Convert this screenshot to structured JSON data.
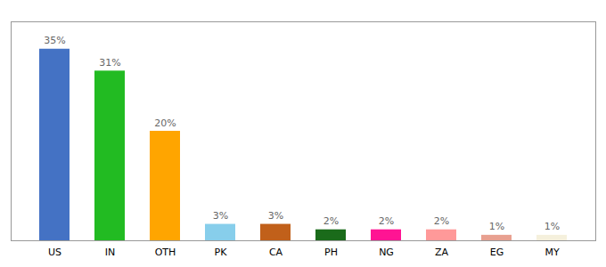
{
  "chart_data": {
    "type": "bar",
    "categories": [
      "US",
      "IN",
      "OTH",
      "PK",
      "CA",
      "PH",
      "NG",
      "ZA",
      "EG",
      "MY"
    ],
    "values": [
      35,
      31,
      20,
      3,
      3,
      2,
      2,
      2,
      1,
      1
    ],
    "value_labels": [
      "35%",
      "31%",
      "20%",
      "3%",
      "3%",
      "2%",
      "2%",
      "2%",
      "1%",
      "1%"
    ],
    "colors": [
      "#4472c4",
      "#22bb22",
      "#ffa500",
      "#87ceeb",
      "#c1601a",
      "#1a6b1a",
      "#ff1493",
      "#ff9999",
      "#e8a090",
      "#f5f0dc"
    ],
    "ylim": [
      0,
      40
    ],
    "tick_labels": "x"
  }
}
